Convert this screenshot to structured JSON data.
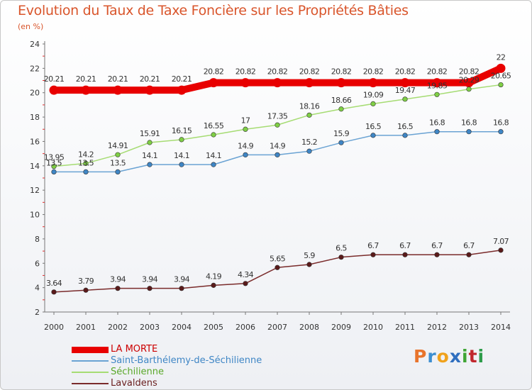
{
  "title": "Evolution du Taux de Taxe Foncière sur les Propriétés Bâties",
  "subtitle": "(en %)",
  "logo": {
    "text": "Proxiti",
    "colors": [
      "#e8742c",
      "#3d8fd1",
      "#f0a21c",
      "#2f6fbf",
      "#3fa535",
      "#c1272d",
      "#2d9c4a"
    ]
  },
  "chart_data": {
    "type": "line",
    "title": "Evolution du Taux de Taxe Foncière sur les Propriétés Bâties",
    "ylabel": "(en %)",
    "xlabel": "",
    "x": [
      "2000",
      "2001",
      "2002",
      "2003",
      "2004",
      "2005",
      "2006",
      "2007",
      "2008",
      "2009",
      "2010",
      "2011",
      "2012",
      "2013",
      "2014"
    ],
    "ylim": [
      2,
      24
    ],
    "yticks": [
      2,
      4,
      6,
      8,
      10,
      12,
      14,
      16,
      18,
      20,
      22,
      24
    ],
    "grid": false,
    "legend": "bottom-left",
    "series": [
      {
        "name": "LA MORTE",
        "color": "#e80000",
        "marker": "#e80000",
        "thick": true,
        "values": [
          20.21,
          20.21,
          20.21,
          20.21,
          20.21,
          20.82,
          20.82,
          20.82,
          20.82,
          20.82,
          20.82,
          20.82,
          20.82,
          20.82,
          22
        ],
        "labels": [
          "20.21",
          "20.21",
          "20.21",
          "20.21",
          "20.21",
          "20.82",
          "20.82",
          "20.82",
          "20.82",
          "20.82",
          "20.82",
          "20.82",
          "20.82",
          "20.82",
          "22"
        ]
      },
      {
        "name": "Saint-Barthélemy-de-Séchilienne",
        "color": "#6aa3d3",
        "marker": "#3f86c5",
        "thick": false,
        "values": [
          13.5,
          13.5,
          13.5,
          14.1,
          14.1,
          14.1,
          14.9,
          14.9,
          15.2,
          15.9,
          16.5,
          16.5,
          16.8,
          16.8,
          16.8
        ],
        "labels": [
          "13.5",
          "13.5",
          "13.5",
          "14.1",
          "14.1",
          "14.1",
          "14.9",
          "14.9",
          "15.2",
          "15.9",
          "16.5",
          "16.5",
          "16.8",
          "16.8",
          "16.8"
        ]
      },
      {
        "name": "Séchilienne",
        "color": "#a6dc73",
        "marker": "#7fcf45",
        "thick": false,
        "values": [
          13.95,
          14.2,
          14.91,
          15.91,
          16.15,
          16.55,
          17,
          17.35,
          18.16,
          18.66,
          19.09,
          19.47,
          19.85,
          20.29,
          20.65
        ],
        "labels": [
          "13.95",
          "14.2",
          "14.91",
          "15.91",
          "16.15",
          "16.55",
          "17",
          "17.35",
          "18.16",
          "18.66",
          "19.09",
          "19.47",
          "19.85",
          "20.29",
          "20.65"
        ]
      },
      {
        "name": "Lavaldens",
        "color": "#7a2b2b",
        "marker": "#5a1a1a",
        "thick": false,
        "values": [
          3.64,
          3.79,
          3.94,
          3.94,
          3.94,
          4.19,
          4.34,
          5.65,
          5.9,
          6.5,
          6.7,
          6.7,
          6.7,
          6.7,
          7.07
        ],
        "labels": [
          "3.64",
          "3.79",
          "3.94",
          "3.94",
          "3.94",
          "4.19",
          "4.34",
          "5.65",
          "5.9",
          "6.5",
          "6.7",
          "6.7",
          "6.7",
          "6.7",
          "7.07"
        ]
      }
    ]
  }
}
